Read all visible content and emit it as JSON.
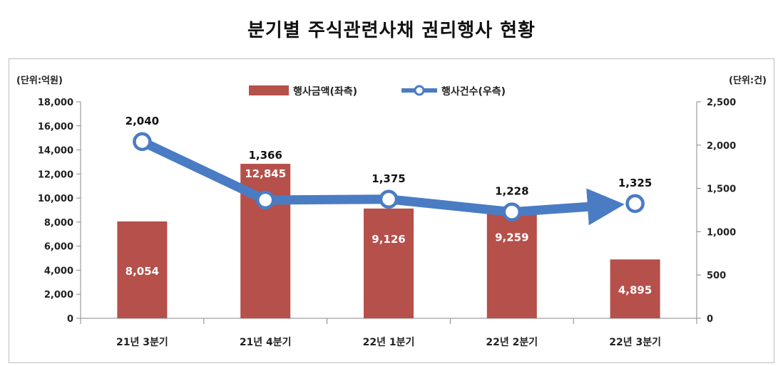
{
  "title": "분기별 주식관련사채 권리행사 현황",
  "colors": {
    "bar": "#b5504b",
    "line": "#4a7cc4",
    "marker_fill": "#ffffff"
  },
  "chart_data": {
    "type": "bar-line",
    "title": "분기별 주식관련사채 권리행사 현황",
    "categories": [
      "21년 3분기",
      "21년 4분기",
      "22년 1분기",
      "22년 2분기",
      "22년 3분기"
    ],
    "left_unit": "(단위:억원)",
    "right_unit": "(단위:건)",
    "series": [
      {
        "name": "행사금액(좌측)",
        "type": "bar",
        "axis": "left",
        "values": [
          8054,
          12845,
          9126,
          9259,
          4895
        ],
        "labels": [
          "8,054",
          "12,845",
          "9,126",
          "9,259",
          "4,895"
        ]
      },
      {
        "name": "행사건수(우측)",
        "type": "line",
        "axis": "right",
        "values": [
          2040,
          1366,
          1375,
          1228,
          1325
        ],
        "labels": [
          "2,040",
          "1,366",
          "1,375",
          "1,228",
          "1,325"
        ]
      }
    ],
    "left_axis": {
      "min": 0,
      "max": 18000,
      "step": 2000,
      "ticks": [
        "0",
        "2,000",
        "4,000",
        "6,000",
        "8,000",
        "10,000",
        "12,000",
        "14,000",
        "16,000",
        "18,000"
      ]
    },
    "right_axis": {
      "min": 0,
      "max": 2500,
      "step": 500,
      "ticks": [
        "0",
        "500",
        "1,000",
        "1,500",
        "2,000",
        "2,500"
      ]
    },
    "grid": false,
    "legend_position": "top-center"
  }
}
